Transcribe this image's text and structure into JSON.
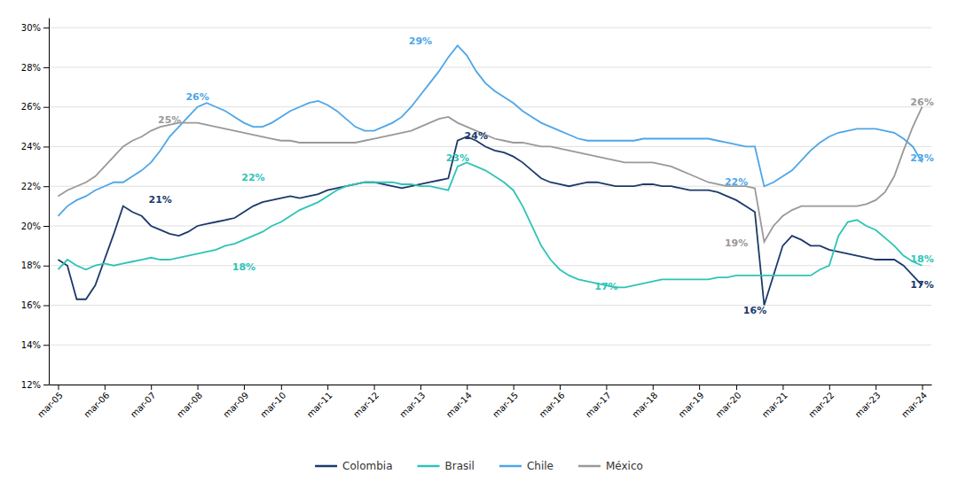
{
  "chart_data": {
    "type": "line",
    "categories": [
      "mar-05",
      null,
      null,
      null,
      null,
      "mar-06",
      null,
      null,
      null,
      null,
      "mar-07",
      null,
      null,
      null,
      null,
      "mar-08",
      null,
      null,
      null,
      null,
      "mar-09",
      null,
      null,
      null,
      "mar-10",
      null,
      null,
      null,
      null,
      "mar-11",
      null,
      null,
      null,
      null,
      "mar-12",
      null,
      null,
      null,
      null,
      "mar-13",
      null,
      null,
      null,
      null,
      "mar-14",
      null,
      null,
      null,
      null,
      "mar-15",
      null,
      null,
      null,
      null,
      "mar-16",
      null,
      null,
      null,
      null,
      "mar-17",
      null,
      null,
      null,
      null,
      "mar-18",
      null,
      null,
      null,
      null,
      "mar-19",
      null,
      null,
      null,
      "mar-20",
      null,
      null,
      null,
      null,
      "mar-21",
      null,
      null,
      null,
      null,
      "mar-22",
      null,
      null,
      null,
      null,
      "mar-23",
      null,
      null,
      null,
      null,
      "mar-24"
    ],
    "series": [
      {
        "name": "Colombia",
        "color": "#1b3a6b",
        "values": [
          0.183,
          0.18,
          0.163,
          0.163,
          0.17,
          0.183,
          0.196,
          0.21,
          0.207,
          0.205,
          0.2,
          0.198,
          0.196,
          0.195,
          0.197,
          0.2,
          0.201,
          0.202,
          0.203,
          0.204,
          0.207,
          0.21,
          0.212,
          0.213,
          0.214,
          0.215,
          0.214,
          0.215,
          0.216,
          0.218,
          0.219,
          0.22,
          0.221,
          0.222,
          0.222,
          0.221,
          0.22,
          0.219,
          0.22,
          0.221,
          0.222,
          0.223,
          0.224,
          0.243,
          0.245,
          0.243,
          0.24,
          0.238,
          0.237,
          0.235,
          0.232,
          0.228,
          0.224,
          0.222,
          0.221,
          0.22,
          0.221,
          0.222,
          0.222,
          0.221,
          0.22,
          0.22,
          0.22,
          0.221,
          0.221,
          0.22,
          0.22,
          0.219,
          0.218,
          0.218,
          0.218,
          0.217,
          0.215,
          0.213,
          0.21,
          0.207,
          0.16,
          0.175,
          0.19,
          0.195,
          0.193,
          0.19,
          0.19,
          0.188,
          0.187,
          0.186,
          0.185,
          0.184,
          0.183,
          0.183,
          0.183,
          0.18,
          0.175,
          0.17
        ]
      },
      {
        "name": "Brasil",
        "color": "#2ec4b6",
        "values": [
          0.178,
          0.183,
          0.18,
          0.178,
          0.18,
          0.181,
          0.18,
          0.181,
          0.182,
          0.183,
          0.184,
          0.183,
          0.183,
          0.184,
          0.185,
          0.186,
          0.187,
          0.188,
          0.19,
          0.191,
          0.193,
          0.195,
          0.197,
          0.2,
          0.202,
          0.205,
          0.208,
          0.21,
          0.212,
          0.215,
          0.218,
          0.22,
          0.221,
          0.222,
          0.222,
          0.222,
          0.222,
          0.221,
          0.221,
          0.22,
          0.22,
          0.219,
          0.218,
          0.23,
          0.232,
          0.23,
          0.228,
          0.225,
          0.222,
          0.218,
          0.21,
          0.2,
          0.19,
          0.183,
          0.178,
          0.175,
          0.173,
          0.172,
          0.171,
          0.17,
          0.169,
          0.169,
          0.17,
          0.171,
          0.172,
          0.173,
          0.173,
          0.173,
          0.173,
          0.173,
          0.173,
          0.174,
          0.174,
          0.175,
          0.175,
          0.175,
          0.175,
          0.175,
          0.175,
          0.175,
          0.175,
          0.175,
          0.178,
          0.18,
          0.195,
          0.202,
          0.203,
          0.2,
          0.198,
          0.194,
          0.19,
          0.185,
          0.182,
          0.18
        ]
      },
      {
        "name": "Chile",
        "color": "#4da6e8",
        "values": [
          0.205,
          0.21,
          0.213,
          0.215,
          0.218,
          0.22,
          0.222,
          0.222,
          0.225,
          0.228,
          0.232,
          0.238,
          0.245,
          0.25,
          0.255,
          0.26,
          0.262,
          0.26,
          0.258,
          0.255,
          0.252,
          0.25,
          0.25,
          0.252,
          0.255,
          0.258,
          0.26,
          0.262,
          0.263,
          0.261,
          0.258,
          0.254,
          0.25,
          0.248,
          0.248,
          0.25,
          0.252,
          0.255,
          0.26,
          0.266,
          0.272,
          0.278,
          0.285,
          0.291,
          0.286,
          0.278,
          0.272,
          0.268,
          0.265,
          0.262,
          0.258,
          0.255,
          0.252,
          0.25,
          0.248,
          0.246,
          0.244,
          0.243,
          0.243,
          0.243,
          0.243,
          0.243,
          0.243,
          0.244,
          0.244,
          0.244,
          0.244,
          0.244,
          0.244,
          0.244,
          0.244,
          0.243,
          0.242,
          0.241,
          0.24,
          0.24,
          0.22,
          0.222,
          0.225,
          0.228,
          0.233,
          0.238,
          0.242,
          0.245,
          0.247,
          0.248,
          0.249,
          0.249,
          0.249,
          0.248,
          0.247,
          0.244,
          0.24,
          0.232
        ]
      },
      {
        "name": "México",
        "color": "#999999",
        "values": [
          0.215,
          0.218,
          0.22,
          0.222,
          0.225,
          0.23,
          0.235,
          0.24,
          0.243,
          0.245,
          0.248,
          0.25,
          0.251,
          0.252,
          0.252,
          0.252,
          0.251,
          0.25,
          0.249,
          0.248,
          0.247,
          0.246,
          0.245,
          0.244,
          0.243,
          0.243,
          0.242,
          0.242,
          0.242,
          0.242,
          0.242,
          0.242,
          0.242,
          0.243,
          0.244,
          0.245,
          0.246,
          0.247,
          0.248,
          0.25,
          0.252,
          0.254,
          0.255,
          0.252,
          0.25,
          0.248,
          0.246,
          0.244,
          0.243,
          0.242,
          0.242,
          0.241,
          0.24,
          0.24,
          0.239,
          0.238,
          0.237,
          0.236,
          0.235,
          0.234,
          0.233,
          0.232,
          0.232,
          0.232,
          0.232,
          0.231,
          0.23,
          0.228,
          0.226,
          0.224,
          0.222,
          0.221,
          0.22,
          0.22,
          0.22,
          0.219,
          0.192,
          0.2,
          0.205,
          0.208,
          0.21,
          0.21,
          0.21,
          0.21,
          0.21,
          0.21,
          0.21,
          0.211,
          0.213,
          0.217,
          0.225,
          0.238,
          0.25,
          0.26
        ]
      }
    ],
    "ylim": [
      0.12,
      0.305
    ],
    "yticks": [
      {
        "value": 0.12,
        "label": "12%"
      },
      {
        "value": 0.14,
        "label": "14%"
      },
      {
        "value": 0.16,
        "label": "16%"
      },
      {
        "value": 0.18,
        "label": "18%"
      },
      {
        "value": 0.2,
        "label": "20%"
      },
      {
        "value": 0.22,
        "label": "22%"
      },
      {
        "value": 0.24,
        "label": "24%"
      },
      {
        "value": 0.26,
        "label": "26%"
      },
      {
        "value": 0.28,
        "label": "28%"
      },
      {
        "value": 0.3,
        "label": "30%"
      }
    ],
    "grid": true,
    "legend": "bottom",
    "annotations": [
      {
        "text": "21%",
        "x": 11,
        "y": 0.213,
        "color": "#1b3a6b"
      },
      {
        "text": "26%",
        "x": 15,
        "y": 0.265,
        "color": "#4da6e8"
      },
      {
        "text": "25%",
        "x": 12,
        "y": 0.253,
        "color": "#999999"
      },
      {
        "text": "22%",
        "x": 21,
        "y": 0.224,
        "color": "#2ec4b6"
      },
      {
        "text": "18%",
        "x": 20,
        "y": 0.179,
        "color": "#2ec4b6"
      },
      {
        "text": "29%",
        "x": 39,
        "y": 0.293,
        "color": "#4da6e8"
      },
      {
        "text": "23%",
        "x": 43,
        "y": 0.234,
        "color": "#2ec4b6"
      },
      {
        "text": "24%",
        "x": 45,
        "y": 0.245,
        "color": "#1b3a6b"
      },
      {
        "text": "17%",
        "x": 59,
        "y": 0.169,
        "color": "#2ec4b6"
      },
      {
        "text": "19%",
        "x": 73,
        "y": 0.191,
        "color": "#999999"
      },
      {
        "text": "22%",
        "x": 73,
        "y": 0.222,
        "color": "#4da6e8"
      },
      {
        "text": "16%",
        "x": 75,
        "y": 0.157,
        "color": "#1b3a6b"
      },
      {
        "text": "26%",
        "x": 93,
        "y": 0.262,
        "color": "#999999"
      },
      {
        "text": "23%",
        "x": 93,
        "y": 0.234,
        "color": "#4da6e8"
      },
      {
        "text": "18%",
        "x": 93,
        "y": 0.183,
        "color": "#2ec4b6"
      },
      {
        "text": "17%",
        "x": 93,
        "y": 0.17,
        "color": "#1b3a6b"
      }
    ]
  }
}
